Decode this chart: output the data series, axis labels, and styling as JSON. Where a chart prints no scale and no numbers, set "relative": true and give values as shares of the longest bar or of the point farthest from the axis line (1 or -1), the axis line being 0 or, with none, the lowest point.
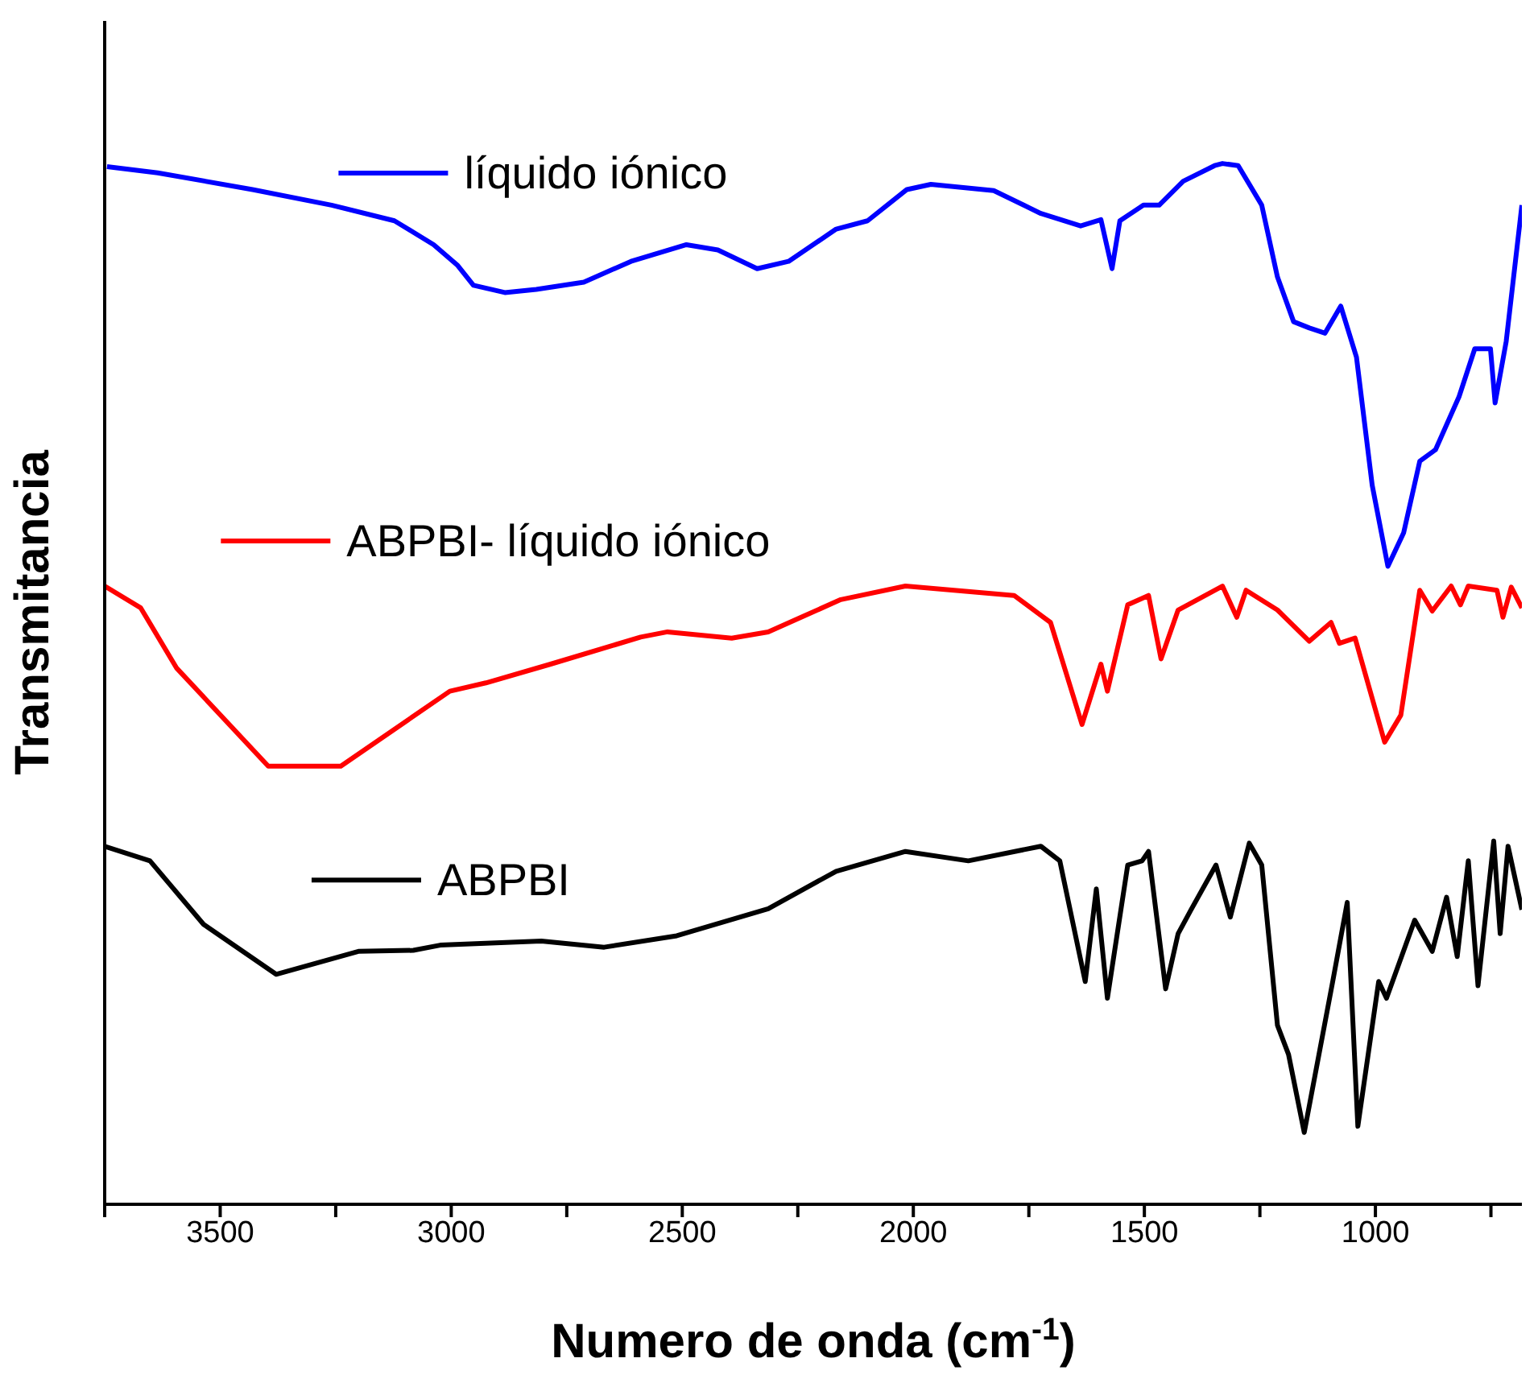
{
  "chart_data": {
    "type": "line",
    "xlabel": "Numero de onda (cm$^{-1}$)",
    "ylabel": "Transmitancia",
    "relative": true,
    "xlim": [
      3750,
      683
    ],
    "xticks": [
      {
        "value": 3750,
        "label": null
      },
      3500,
      {
        "value": 3250,
        "label": null
      },
      3000,
      {
        "value": 2750,
        "label": null
      },
      2500,
      {
        "value": 2250,
        "label": null
      },
      2000,
      {
        "value": 1750,
        "label": null
      },
      1500,
      {
        "value": 1250,
        "label": null
      },
      1000,
      {
        "value": 750,
        "label": null
      }
    ],
    "grid": false,
    "legend": "top left",
    "marker": "none",
    "line_style": "solid",
    "series": [
      {
        "name": "líquido iónico",
        "color": "#0000ff",
        "x": [
          3745,
          3635,
          3430,
          3259,
          3123,
          3038,
          2986,
          2952,
          2884,
          2816,
          2713,
          2611,
          2491,
          2423,
          2338,
          2270,
          2167,
          2099,
          2014,
          1962,
          1826,
          1724,
          1638,
          1594,
          1570,
          1553,
          1502,
          1468,
          1416,
          1348,
          1331,
          1297,
          1246,
          1212,
          1177,
          1143,
          1109,
          1075,
          1041,
          1007,
          973,
          939,
          904,
          870,
          819,
          785,
          751,
          741,
          717,
          683
        ],
        "values": [
          0.997,
          0.991,
          0.975,
          0.96,
          0.945,
          0.922,
          0.902,
          0.883,
          0.876,
          0.879,
          0.886,
          0.906,
          0.922,
          0.917,
          0.899,
          0.906,
          0.937,
          0.945,
          0.975,
          0.98,
          0.974,
          0.952,
          0.94,
          0.946,
          0.899,
          0.945,
          0.96,
          0.96,
          0.983,
          0.998,
          1.0,
          0.998,
          0.96,
          0.891,
          0.848,
          0.842,
          0.837,
          0.863,
          0.814,
          0.691,
          0.613,
          0.645,
          0.714,
          0.725,
          0.776,
          0.822,
          0.822,
          0.77,
          0.829,
          0.96
        ]
      },
      {
        "name": "ABPBI- líquido iónico",
        "color": "#ff0000",
        "x": [
          3750,
          3672,
          3594,
          3396,
          3239,
          3003,
          2925,
          2785,
          2590,
          2532,
          2393,
          2314,
          2157,
          2017,
          1782,
          1703,
          1635,
          1594,
          1580,
          1536,
          1491,
          1464,
          1427,
          1331,
          1300,
          1280,
          1212,
          1143,
          1096,
          1078,
          1044,
          980,
          945,
          904,
          877,
          836,
          816,
          799,
          737,
          724,
          706,
          683
        ],
        "values": [
          0.594,
          0.573,
          0.515,
          0.421,
          0.421,
          0.493,
          0.501,
          0.519,
          0.545,
          0.55,
          0.544,
          0.55,
          0.581,
          0.594,
          0.585,
          0.559,
          0.461,
          0.519,
          0.493,
          0.576,
          0.585,
          0.524,
          0.571,
          0.594,
          0.564,
          0.59,
          0.571,
          0.541,
          0.559,
          0.539,
          0.544,
          0.444,
          0.47,
          0.59,
          0.57,
          0.594,
          0.576,
          0.594,
          0.59,
          0.564,
          0.593,
          0.573
        ]
      },
      {
        "name": "ABPBI",
        "color": "#000000",
        "x": [
          3750,
          3652,
          3536,
          3379,
          3201,
          3082,
          3024,
          2805,
          2669,
          2512,
          2314,
          2167,
          2017,
          1881,
          1724,
          1683,
          1628,
          1604,
          1580,
          1536,
          1505,
          1491,
          1454,
          1427,
          1399,
          1345,
          1314,
          1273,
          1246,
          1212,
          1188,
          1154,
          1092,
          1061,
          1038,
          993,
          976,
          915,
          877,
          846,
          823,
          799,
          778,
          744,
          730,
          713,
          683
        ],
        "values": [
          0.344,
          0.33,
          0.269,
          0.221,
          0.243,
          0.244,
          0.249,
          0.253,
          0.247,
          0.258,
          0.284,
          0.32,
          0.339,
          0.33,
          0.344,
          0.33,
          0.214,
          0.303,
          0.198,
          0.326,
          0.33,
          0.339,
          0.207,
          0.26,
          0.283,
          0.326,
          0.276,
          0.347,
          0.326,
          0.172,
          0.144,
          0.069,
          0.215,
          0.29,
          0.075,
          0.214,
          0.198,
          0.273,
          0.243,
          0.295,
          0.238,
          0.33,
          0.21,
          0.349,
          0.26,
          0.344,
          0.283
        ]
      }
    ]
  }
}
